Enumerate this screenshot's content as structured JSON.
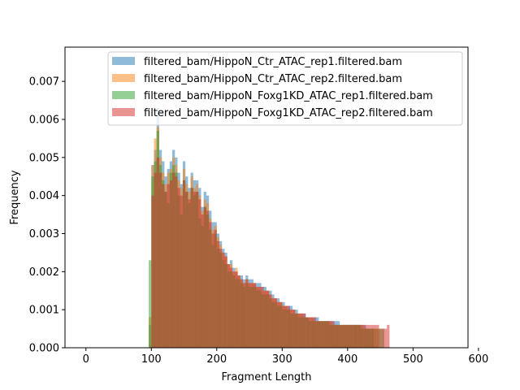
{
  "chart_data": {
    "type": "histogram",
    "xlabel": "Fragment Length",
    "ylabel": "Frequency",
    "xlim": [
      -32,
      584
    ],
    "ylim": [
      0,
      0.0079
    ],
    "xticks": [
      0,
      100,
      200,
      300,
      400,
      500,
      600
    ],
    "yticks": [
      0.0,
      0.001,
      0.002,
      0.003,
      0.004,
      0.005,
      0.006,
      0.007
    ],
    "ytick_labels": [
      "0.000",
      "0.001",
      "0.002",
      "0.003",
      "0.004",
      "0.005",
      "0.006",
      "0.007"
    ],
    "legend_position": "top-right",
    "bin_width": 4,
    "bin_start": 96,
    "bar_alpha": 0.5,
    "series": [
      {
        "name": "filtered_bam/HippoN_Ctr_ATAC_rep1.filtered.bam",
        "color": "#1f77b4",
        "values": [
          0.0006,
          0.0048,
          0.0052,
          0.0063,
          0.0052,
          0.0049,
          0.0045,
          0.0047,
          0.0049,
          0.0052,
          0.005,
          0.0046,
          0.0043,
          0.0049,
          0.0045,
          0.0042,
          0.0046,
          0.0044,
          0.0044,
          0.0042,
          0.0037,
          0.0041,
          0.004,
          0.0036,
          0.0033,
          0.0033,
          0.003,
          0.0028,
          0.0026,
          0.0025,
          0.0022,
          0.0023,
          0.0021,
          0.002,
          0.0019,
          0.0019,
          0.0018,
          0.0019,
          0.0018,
          0.0018,
          0.0017,
          0.0017,
          0.0017,
          0.0016,
          0.0016,
          0.0015,
          0.0015,
          0.0014,
          0.0013,
          0.0013,
          0.0012,
          0.0012,
          0.0011,
          0.0011,
          0.0011,
          0.001,
          0.001,
          0.0009,
          0.0009,
          0.0009,
          0.0008,
          0.0008,
          0.0008,
          0.0008,
          0.0008,
          0.0007,
          0.0007,
          0.0007,
          0.0007,
          0.0007,
          0.0007,
          0.0007,
          0.0007,
          0.0006,
          0.0006,
          0.0006,
          0.0006,
          0.0006,
          0.0006,
          0.0006,
          0.0006,
          0.0006,
          0.0006,
          0.0005,
          0.0005,
          0.0005,
          0.0,
          0.0,
          0.0,
          0.0,
          0.0,
          0.0,
          0.0,
          0.0,
          0.0,
          0.0,
          0.0,
          0.0,
          0.0,
          0.0,
          0.0,
          0.0,
          0.0,
          0.0,
          0.0,
          0.0,
          0.0,
          0.0,
          0.0,
          0.0,
          0.0,
          0.0,
          0.0,
          0.0,
          0.0,
          0.0,
          0.0,
          0.0,
          0.0,
          0.0
        ]
      },
      {
        "name": "filtered_bam/HippoN_Ctr_ATAC_rep2.filtered.bam",
        "color": "#ff7f0e",
        "values": [
          0.0008,
          0.0048,
          0.0055,
          0.0058,
          0.005,
          0.0046,
          0.0043,
          0.0046,
          0.0047,
          0.005,
          0.0048,
          0.0044,
          0.0042,
          0.0047,
          0.0043,
          0.0041,
          0.0045,
          0.0042,
          0.0043,
          0.004,
          0.0036,
          0.0039,
          0.0038,
          0.0034,
          0.0031,
          0.0032,
          0.0029,
          0.0027,
          0.0025,
          0.0024,
          0.0022,
          0.0022,
          0.002,
          0.0021,
          0.0019,
          0.0018,
          0.0017,
          0.0018,
          0.0017,
          0.0017,
          0.0017,
          0.0016,
          0.0016,
          0.0015,
          0.0015,
          0.0015,
          0.0014,
          0.0013,
          0.0013,
          0.0012,
          0.0012,
          0.0011,
          0.0011,
          0.001,
          0.001,
          0.001,
          0.0009,
          0.0009,
          0.0009,
          0.0008,
          0.0008,
          0.0008,
          0.0008,
          0.0007,
          0.0007,
          0.0007,
          0.0007,
          0.0007,
          0.0007,
          0.0007,
          0.0006,
          0.0006,
          0.0006,
          0.0006,
          0.0006,
          0.0006,
          0.0006,
          0.0006,
          0.0006,
          0.0006,
          0.0006,
          0.0006,
          0.0005,
          0.0005,
          0.0005,
          0.0005,
          0.0005,
          0.0005,
          0.0,
          0.0,
          0.0,
          0.0,
          0.0,
          0.0,
          0.0,
          0.0,
          0.0,
          0.0,
          0.0,
          0.0,
          0.0,
          0.0,
          0.0,
          0.0,
          0.0,
          0.0,
          0.0,
          0.0,
          0.0,
          0.0,
          0.0,
          0.0,
          0.0,
          0.0,
          0.0,
          0.0,
          0.0,
          0.0,
          0.0,
          0.0
        ]
      },
      {
        "name": "filtered_bam/HippoN_Foxg1KD_ATAC_rep1.filtered.bam",
        "color": "#2ca02c",
        "values": [
          0.0023,
          0.0045,
          0.0049,
          0.0057,
          0.0048,
          0.0044,
          0.0041,
          0.0038,
          0.0046,
          0.0048,
          0.0046,
          0.004,
          0.0035,
          0.0044,
          0.0041,
          0.0038,
          0.0042,
          0.004,
          0.0041,
          0.0034,
          0.0032,
          0.0037,
          0.0035,
          0.0031,
          0.0027,
          0.003,
          0.0026,
          0.0025,
          0.0023,
          0.0022,
          0.002,
          0.002,
          0.0019,
          0.0018,
          0.0018,
          0.0017,
          0.0016,
          0.0017,
          0.0016,
          0.0016,
          0.0016,
          0.0015,
          0.0015,
          0.0014,
          0.0014,
          0.0014,
          0.0013,
          0.0012,
          0.0012,
          0.0011,
          0.0011,
          0.001,
          0.001,
          0.001,
          0.0009,
          0.0009,
          0.0009,
          0.0008,
          0.0008,
          0.0008,
          0.0008,
          0.0007,
          0.0007,
          0.0007,
          0.0007,
          0.0007,
          0.0007,
          0.0007,
          0.0007,
          0.0006,
          0.0006,
          0.0006,
          0.0006,
          0.0006,
          0.0006,
          0.0006,
          0.0006,
          0.0006,
          0.0006,
          0.0006,
          0.0006,
          0.0005,
          0.0005,
          0.0005,
          0.0005,
          0.0005,
          0.0005,
          0.0005,
          0.0005,
          0.0005,
          0.0,
          0.0,
          0.0,
          0.0,
          0.0,
          0.0,
          0.0,
          0.0,
          0.0,
          0.0,
          0.0,
          0.0,
          0.0,
          0.0,
          0.0,
          0.0,
          0.0,
          0.0,
          0.0,
          0.0,
          0.0,
          0.0,
          0.0,
          0.0,
          0.0,
          0.0,
          0.0,
          0.0,
          0.0,
          0.0
        ]
      },
      {
        "name": "filtered_bam/HippoN_Foxg1KD_ATAC_rep2.filtered.bam",
        "color": "#d62728",
        "values": [
          0.0,
          0.004,
          0.0046,
          0.005,
          0.0046,
          0.0043,
          0.0041,
          0.0043,
          0.0044,
          0.0046,
          0.0045,
          0.0042,
          0.004,
          0.0044,
          0.0041,
          0.0039,
          0.0042,
          0.0041,
          0.0041,
          0.0039,
          0.0035,
          0.0037,
          0.0036,
          0.0033,
          0.003,
          0.0031,
          0.0028,
          0.0026,
          0.0025,
          0.0024,
          0.0022,
          0.0021,
          0.002,
          0.002,
          0.0019,
          0.0018,
          0.0017,
          0.0018,
          0.0017,
          0.0017,
          0.0017,
          0.0016,
          0.0016,
          0.0016,
          0.0015,
          0.0015,
          0.0014,
          0.0013,
          0.0013,
          0.0012,
          0.0012,
          0.0011,
          0.0011,
          0.0011,
          0.001,
          0.001,
          0.0009,
          0.0009,
          0.0009,
          0.0009,
          0.0008,
          0.0008,
          0.0008,
          0.0008,
          0.0007,
          0.0007,
          0.0007,
          0.0007,
          0.0007,
          0.0007,
          0.0007,
          0.0006,
          0.0006,
          0.0006,
          0.0006,
          0.0006,
          0.0006,
          0.0006,
          0.0006,
          0.0006,
          0.0006,
          0.0006,
          0.0006,
          0.0006,
          0.0006,
          0.0006,
          0.0006,
          0.0006,
          0.0005,
          0.0005,
          0.0005,
          0.0006,
          0.0,
          0.0,
          0.0,
          0.0,
          0.0,
          0.0,
          0.0,
          0.0,
          0.0,
          0.0,
          0.0,
          0.0,
          0.0,
          0.0,
          0.0,
          0.0,
          0.0,
          0.0,
          0.0,
          0.0,
          0.0,
          0.0,
          0.0,
          0.0,
          0.0,
          0.0,
          0.0,
          0.0
        ]
      }
    ]
  }
}
